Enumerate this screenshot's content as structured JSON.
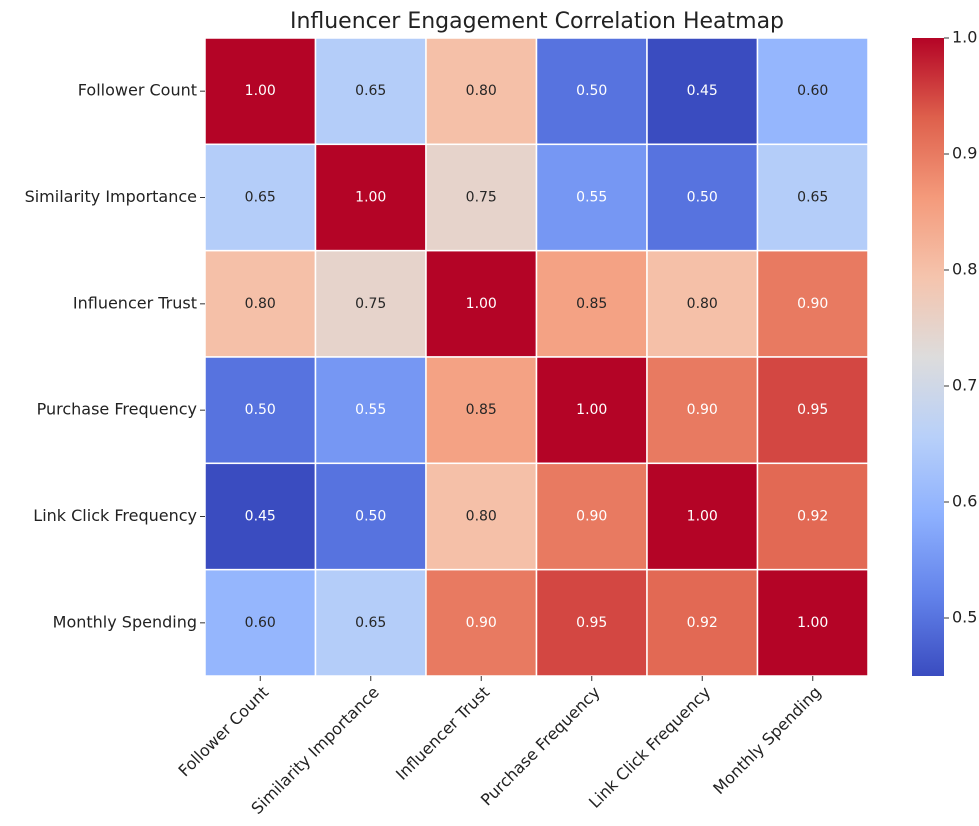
{
  "chart_data": {
    "type": "heatmap",
    "title": "Influencer Engagement Correlation Heatmap",
    "categories": [
      "Follower Count",
      "Similarity Importance",
      "Influencer Trust",
      "Purchase Frequency",
      "Link Click Frequency",
      "Monthly Spending"
    ],
    "values": [
      [
        1,
        0.65,
        0.8,
        0.5,
        0.45,
        0.6
      ],
      [
        0.65,
        1,
        0.75,
        0.55,
        0.5,
        0.65
      ],
      [
        0.8,
        0.75,
        1,
        0.85,
        0.8,
        0.9
      ],
      [
        0.5,
        0.55,
        0.85,
        1,
        0.9,
        0.95
      ],
      [
        0.45,
        0.5,
        0.8,
        0.9,
        1,
        0.92
      ],
      [
        0.6,
        0.65,
        0.9,
        0.95,
        0.92,
        1
      ]
    ],
    "value_labels": [
      [
        "1.00",
        "0.65",
        "0.80",
        "0.50",
        "0.45",
        "0.60"
      ],
      [
        "0.65",
        "1.00",
        "0.75",
        "0.55",
        "0.50",
        "0.65"
      ],
      [
        "0.80",
        "0.75",
        "1.00",
        "0.85",
        "0.80",
        "0.90"
      ],
      [
        "0.50",
        "0.55",
        "0.85",
        "1.00",
        "0.90",
        "0.95"
      ],
      [
        "0.45",
        "0.50",
        "0.80",
        "0.90",
        "1.00",
        "0.92"
      ],
      [
        "0.60",
        "0.65",
        "0.90",
        "0.95",
        "0.92",
        "1.00"
      ]
    ],
    "colormap": "coolwarm",
    "zlim": [
      0.45,
      1
    ],
    "zticks": [
      0.5,
      0.6,
      0.7,
      0.8,
      0.9,
      {
        "value": 1,
        "label": "1.0"
      }
    ]
  }
}
